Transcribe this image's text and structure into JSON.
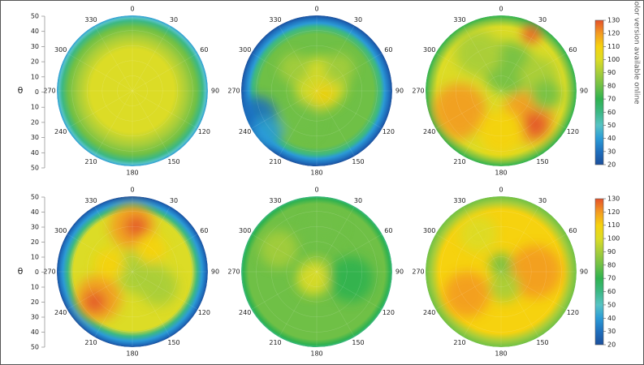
{
  "note": "Color version available online",
  "chart_data": {
    "type": "polar_heatmap",
    "theta_label": "θ",
    "theta_ticks": [
      50,
      40,
      30,
      20,
      10,
      0,
      10,
      20,
      30,
      40,
      50
    ],
    "angle_labels": [
      0,
      30,
      60,
      90,
      120,
      150,
      180,
      210,
      240,
      270,
      300,
      330
    ],
    "colorbar": {
      "lim": [
        20,
        130
      ],
      "ticks": [
        20,
        30,
        40,
        50,
        60,
        70,
        80,
        90,
        100,
        110,
        120,
        130
      ],
      "colors": [
        "#1b4f9c",
        "#1f6fbd",
        "#2b9bd6",
        "#57c3c4",
        "#3cb884",
        "#2fb24f",
        "#6fc046",
        "#a6cd3b",
        "#dcdc26",
        "#f6d20f",
        "#f39b22",
        "#e5512a"
      ]
    }
  }
}
